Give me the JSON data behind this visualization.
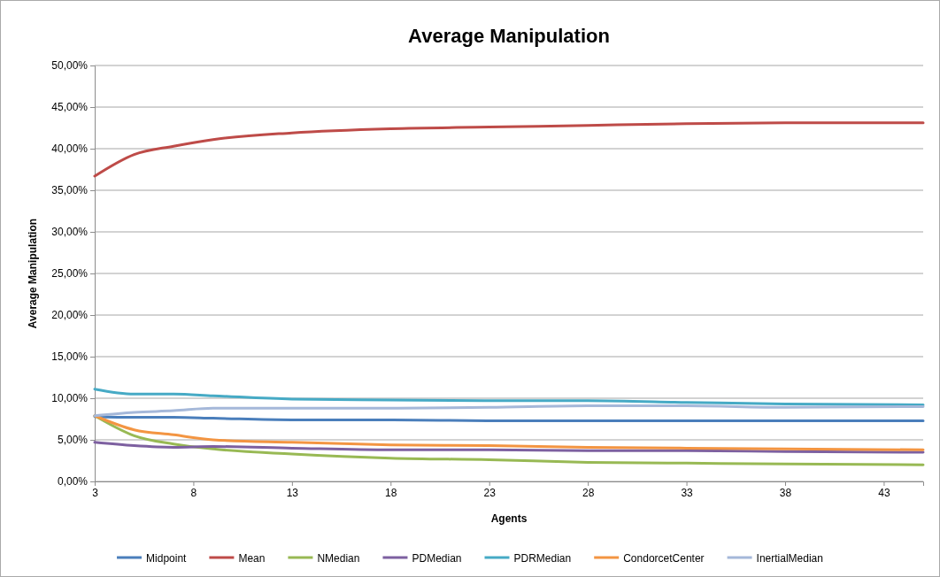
{
  "chart_data": {
    "type": "line",
    "title": "Average Manipulation",
    "xlabel": "Agents",
    "ylabel": "Average Manipulation",
    "x": [
      3,
      5,
      7,
      9,
      13,
      18,
      23,
      28,
      33,
      38,
      45
    ],
    "xlim": [
      3,
      45
    ],
    "xticks": [
      3,
      8,
      13,
      18,
      23,
      28,
      33,
      38,
      43
    ],
    "ylim": [
      0,
      50
    ],
    "yticks": [
      {
        "value": 0,
        "label": "0,00%"
      },
      {
        "value": 5,
        "label": "5,00%"
      },
      {
        "value": 10,
        "label": "10,00%"
      },
      {
        "value": 15,
        "label": "15,00%"
      },
      {
        "value": 20,
        "label": "20,00%"
      },
      {
        "value": 25,
        "label": "25,00%"
      },
      {
        "value": 30,
        "label": "30,00%"
      },
      {
        "value": 35,
        "label": "35,00%"
      },
      {
        "value": 40,
        "label": "40,00%"
      },
      {
        "value": 45,
        "label": "45,00%"
      },
      {
        "value": 50,
        "label": "50,00%"
      }
    ],
    "grid": "y",
    "legend": "bottom",
    "marker": "none",
    "line_style": "solid",
    "series": [
      {
        "name": "Midpoint",
        "color": "#4a7ebb",
        "values": [
          7.8,
          7.7,
          7.7,
          7.6,
          7.4,
          7.4,
          7.3,
          7.3,
          7.3,
          7.3,
          7.3
        ]
      },
      {
        "name": "Mean",
        "color": "#be4b48",
        "values": [
          36.7,
          39.3,
          40.3,
          41.1,
          41.9,
          42.4,
          42.6,
          42.8,
          43.0,
          43.1,
          43.1
        ]
      },
      {
        "name": "NMedian",
        "color": "#98b954",
        "values": [
          7.9,
          5.5,
          4.5,
          3.9,
          3.3,
          2.8,
          2.6,
          2.3,
          2.2,
          2.1,
          2.0
        ]
      },
      {
        "name": "PDMedian",
        "color": "#7d60a0",
        "values": [
          4.7,
          4.3,
          4.1,
          4.2,
          4.0,
          3.8,
          3.8,
          3.7,
          3.7,
          3.6,
          3.5
        ]
      },
      {
        "name": "PDRMedian",
        "color": "#46aac5",
        "values": [
          11.1,
          10.5,
          10.5,
          10.3,
          9.9,
          9.8,
          9.7,
          9.7,
          9.5,
          9.3,
          9.2
        ]
      },
      {
        "name": "CondorcetCenter",
        "color": "#f39542",
        "values": [
          7.9,
          6.2,
          5.6,
          5.0,
          4.7,
          4.4,
          4.3,
          4.1,
          4.0,
          3.9,
          3.8
        ]
      },
      {
        "name": "InertialMedian",
        "color": "#a5b8d9",
        "values": [
          7.9,
          8.3,
          8.5,
          8.8,
          8.8,
          8.8,
          8.9,
          9.1,
          9.1,
          8.9,
          9.0
        ]
      }
    ]
  }
}
